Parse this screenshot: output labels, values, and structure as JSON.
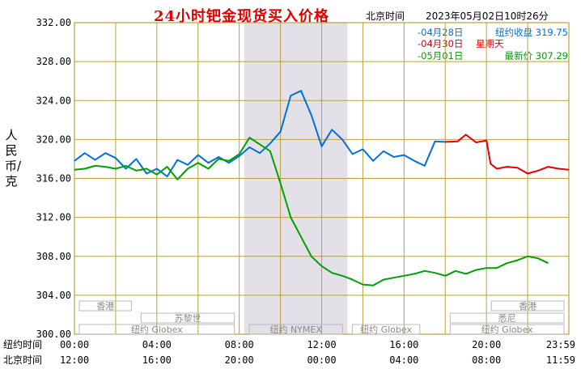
{
  "header": {
    "title": "24小时钯金现货买入价格",
    "beijing_time_label": "北京时间",
    "datetime": "2023年05月02日10时26分"
  },
  "legend": [
    {
      "label": "-04月28日",
      "desc": "纽约收盘",
      "value": "319.75",
      "color": "#0070e0"
    },
    {
      "label": "-04月30日",
      "desc": "星期天",
      "value": "",
      "color": "#e00000"
    },
    {
      "label": "-05月01日",
      "desc": "最新价",
      "value": "307.29",
      "color": "#00a000"
    }
  ],
  "y_axis_label": "人民币/克",
  "x_row_labels": [
    "纽约时间",
    "北京时间"
  ],
  "sessions": [
    {
      "name": "香港",
      "start": 0,
      "end": 3
    },
    {
      "name": "苏黎世",
      "start": 3,
      "end": 8
    },
    {
      "name": "纽约 Globex",
      "start": 0,
      "end": 8
    },
    {
      "name": "纽约 NYMEX",
      "start": 8.25,
      "end": 13.25
    },
    {
      "name": "纽约 Globex",
      "start": 13.25,
      "end": 17
    },
    {
      "name": "悉尼",
      "start": 18,
      "end": 24
    },
    {
      "name": "香港",
      "start": 20,
      "end": 24
    },
    {
      "name": "纽约 Globex",
      "start": 18,
      "end": 24
    }
  ],
  "chart_data": {
    "type": "line",
    "ylim": [
      300,
      332
    ],
    "y_ticks": [
      "300.00",
      "304.00",
      "308.00",
      "312.00",
      "316.00",
      "320.00",
      "324.00",
      "328.00",
      "332.00"
    ],
    "x_range": [
      0,
      24
    ],
    "x_ticks_ny": [
      "00:00",
      "04:00",
      "08:00",
      "12:00",
      "16:00",
      "20:00",
      "23:59"
    ],
    "x_ticks_bj": [
      "12:00",
      "16:00",
      "20:00",
      "00:00",
      "04:00",
      "08:00",
      "11:59"
    ],
    "x_minor_ticks": [
      0,
      2,
      4,
      6,
      8,
      10,
      12,
      14,
      16,
      18,
      20,
      22,
      24
    ],
    "highlight_range": [
      8.25,
      13.25
    ],
    "series": [
      {
        "name": "04月28日",
        "color": "#0070e0",
        "points": [
          [
            0,
            317.8
          ],
          [
            0.5,
            318.6
          ],
          [
            1,
            317.9
          ],
          [
            1.5,
            318.6
          ],
          [
            2,
            318.1
          ],
          [
            2.5,
            317.0
          ],
          [
            3,
            318.0
          ],
          [
            3.5,
            316.5
          ],
          [
            4,
            317.0
          ],
          [
            4.5,
            316.2
          ],
          [
            5,
            317.9
          ],
          [
            5.5,
            317.4
          ],
          [
            6,
            318.4
          ],
          [
            6.5,
            317.6
          ],
          [
            7,
            318.2
          ],
          [
            7.5,
            317.6
          ],
          [
            8,
            318.3
          ],
          [
            8.5,
            319.2
          ],
          [
            9,
            318.6
          ],
          [
            9.5,
            319.6
          ],
          [
            10,
            320.8
          ],
          [
            10.5,
            324.5
          ],
          [
            11,
            325.0
          ],
          [
            11.5,
            322.5
          ],
          [
            12,
            319.3
          ],
          [
            12.5,
            321.0
          ],
          [
            13,
            320.0
          ],
          [
            13.5,
            318.5
          ],
          [
            14,
            319.0
          ],
          [
            14.5,
            317.8
          ],
          [
            15,
            318.8
          ],
          [
            15.5,
            318.2
          ],
          [
            16,
            318.4
          ],
          [
            16.5,
            317.8
          ],
          [
            17,
            317.3
          ],
          [
            17.5,
            319.8
          ],
          [
            18,
            319.75
          ]
        ]
      },
      {
        "name": "04月30日",
        "color": "#e00000",
        "points": [
          [
            18,
            319.75
          ],
          [
            18.6,
            319.8
          ],
          [
            19,
            320.5
          ],
          [
            19.5,
            319.7
          ],
          [
            20,
            319.9
          ],
          [
            20.2,
            317.5
          ],
          [
            20.5,
            317.0
          ],
          [
            21,
            317.2
          ],
          [
            21.5,
            317.1
          ],
          [
            22,
            316.5
          ],
          [
            22.5,
            316.8
          ],
          [
            23,
            317.2
          ],
          [
            23.5,
            317.0
          ],
          [
            24,
            316.9
          ]
        ]
      },
      {
        "name": "05月01日",
        "color": "#00a000",
        "points": [
          [
            0,
            316.9
          ],
          [
            0.5,
            317.0
          ],
          [
            1,
            317.3
          ],
          [
            1.5,
            317.2
          ],
          [
            2,
            317.0
          ],
          [
            2.5,
            317.3
          ],
          [
            3,
            316.8
          ],
          [
            3.5,
            317.0
          ],
          [
            4,
            316.4
          ],
          [
            4.5,
            317.2
          ],
          [
            5,
            315.9
          ],
          [
            5.5,
            317.0
          ],
          [
            6,
            317.6
          ],
          [
            6.5,
            317.0
          ],
          [
            7,
            318.0
          ],
          [
            7.5,
            317.8
          ],
          [
            8,
            318.5
          ],
          [
            8.5,
            320.2
          ],
          [
            9,
            319.5
          ],
          [
            9.5,
            318.8
          ],
          [
            10,
            315.5
          ],
          [
            10.5,
            312.0
          ],
          [
            11,
            310.0
          ],
          [
            11.5,
            308.0
          ],
          [
            12,
            307.0
          ],
          [
            12.5,
            306.3
          ],
          [
            13,
            306.0
          ],
          [
            13.5,
            305.6
          ],
          [
            14,
            305.1
          ],
          [
            14.5,
            305.0
          ],
          [
            15,
            305.6
          ],
          [
            15.5,
            305.8
          ],
          [
            16,
            306.0
          ],
          [
            16.5,
            306.2
          ],
          [
            17,
            306.5
          ],
          [
            17.5,
            306.3
          ],
          [
            18,
            306.0
          ],
          [
            18.5,
            306.5
          ],
          [
            19,
            306.2
          ],
          [
            19.5,
            306.6
          ],
          [
            20,
            306.8
          ],
          [
            20.5,
            306.8
          ],
          [
            21,
            307.3
          ],
          [
            21.5,
            307.6
          ],
          [
            22,
            308.0
          ],
          [
            22.5,
            307.8
          ],
          [
            23,
            307.3
          ]
        ]
      }
    ]
  }
}
